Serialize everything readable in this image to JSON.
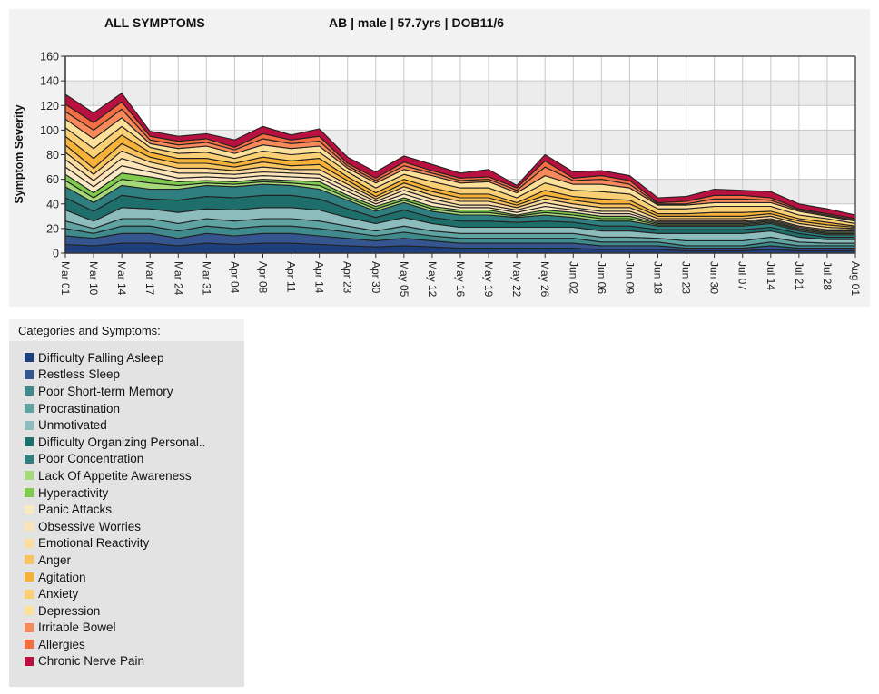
{
  "header": {
    "title": "ALL SYMPTOMS",
    "patient_info": "AB | male | 57.7yrs | DOB11/6"
  },
  "legend": {
    "title": "Categories and Symptoms:"
  },
  "chart_data": {
    "type": "area",
    "stacked": true,
    "title": "ALL SYMPTOMS",
    "subtitle": "AB | male | 57.7yrs | DOB11/6",
    "xlabel": "",
    "ylabel": "Symptom Severity",
    "ylim": [
      0,
      160
    ],
    "yticks": [
      0,
      20,
      40,
      60,
      80,
      100,
      120,
      140,
      160
    ],
    "grid": true,
    "legend_position": "below-left",
    "categories": [
      "Mar 01",
      "Mar 10",
      "Mar 14",
      "Mar 17",
      "Mar 24",
      "Mar 31",
      "Apr 04",
      "Apr 08",
      "Apr 11",
      "Apr 14",
      "Apr 23",
      "Apr 30",
      "May 05",
      "May 12",
      "May 16",
      "May 19",
      "May 22",
      "May 26",
      "Jun 02",
      "Jun 06",
      "Jun 09",
      "Jun 18",
      "Jun 23",
      "Jun 30",
      "Jul 07",
      "Jul 14",
      "Jul 21",
      "Jul 28",
      "Aug 01"
    ],
    "series": [
      {
        "name": "Difficulty Falling Asleep",
        "color": "#1f3f7f",
        "values": [
          7,
          6,
          8,
          8,
          6,
          8,
          7,
          8,
          8,
          7,
          6,
          5,
          6,
          5,
          4,
          4,
          4,
          4,
          4,
          3,
          3,
          3,
          2,
          2,
          2,
          3,
          2,
          2,
          2
        ]
      },
      {
        "name": "Restless Sleep",
        "color": "#34558f",
        "values": [
          7,
          6,
          8,
          8,
          6,
          8,
          7,
          8,
          8,
          7,
          6,
          5,
          6,
          5,
          4,
          4,
          4,
          4,
          4,
          3,
          3,
          3,
          2,
          2,
          2,
          3,
          2,
          2,
          2
        ]
      },
      {
        "name": "Poor Short-term Memory",
        "color": "#3f8a8c",
        "values": [
          6,
          4,
          6,
          6,
          6,
          6,
          6,
          6,
          6,
          6,
          5,
          4,
          5,
          4,
          4,
          4,
          4,
          4,
          4,
          3,
          3,
          3,
          2,
          2,
          2,
          3,
          2,
          2,
          2
        ]
      },
      {
        "name": "Procrastination",
        "color": "#5fa3a3",
        "values": [
          6,
          4,
          6,
          6,
          6,
          6,
          6,
          6,
          6,
          6,
          5,
          4,
          5,
          4,
          4,
          4,
          4,
          4,
          4,
          4,
          4,
          3,
          4,
          4,
          4,
          4,
          3,
          2,
          2
        ]
      },
      {
        "name": "Unmotivated",
        "color": "#8dbcbc",
        "values": [
          9,
          6,
          9,
          8,
          9,
          8,
          9,
          9,
          9,
          9,
          7,
          6,
          7,
          6,
          5,
          5,
          5,
          5,
          5,
          5,
          5,
          4,
          6,
          6,
          6,
          5,
          4,
          3,
          3
        ]
      },
      {
        "name": "Difficulty Organizing Personal..",
        "color": "#1e6e6b",
        "values": [
          10,
          8,
          10,
          8,
          10,
          10,
          10,
          10,
          10,
          9,
          7,
          5,
          6,
          5,
          5,
          5,
          4,
          5,
          4,
          4,
          4,
          3,
          3,
          3,
          3,
          3,
          3,
          2,
          2
        ]
      },
      {
        "name": "Poor Concentration",
        "color": "#2f7f80",
        "values": [
          9,
          7,
          8,
          8,
          9,
          9,
          9,
          9,
          8,
          8,
          7,
          5,
          6,
          5,
          5,
          5,
          4,
          5,
          4,
          4,
          4,
          3,
          3,
          3,
          3,
          3,
          2,
          2,
          2
        ]
      },
      {
        "name": "Lack Of Appetite Awareness",
        "color": "#a6d97a",
        "values": [
          5,
          4,
          5,
          5,
          3,
          2,
          2,
          2,
          2,
          3,
          2,
          2,
          2,
          2,
          2,
          2,
          1,
          2,
          2,
          2,
          2,
          1,
          1,
          1,
          1,
          1,
          1,
          1,
          1
        ]
      },
      {
        "name": "Hyperactivity",
        "color": "#7ecb4e",
        "values": [
          5,
          4,
          5,
          5,
          3,
          2,
          2,
          2,
          2,
          3,
          2,
          2,
          2,
          2,
          2,
          2,
          1,
          2,
          2,
          2,
          2,
          1,
          1,
          1,
          1,
          1,
          1,
          1,
          1
        ]
      },
      {
        "name": "Panic Attacks",
        "color": "#fbe8c4",
        "values": [
          6,
          5,
          6,
          4,
          3,
          3,
          3,
          3,
          3,
          3,
          3,
          2,
          3,
          3,
          2,
          2,
          2,
          3,
          2,
          2,
          2,
          1,
          1,
          1,
          1,
          1,
          1,
          1,
          1
        ]
      },
      {
        "name": "Obsessive Worries",
        "color": "#fde4b8",
        "values": [
          6,
          5,
          6,
          4,
          4,
          3,
          3,
          3,
          3,
          3,
          3,
          2,
          3,
          3,
          2,
          2,
          2,
          3,
          2,
          2,
          2,
          1,
          1,
          1,
          1,
          1,
          1,
          1,
          1
        ]
      },
      {
        "name": "Emotional Reactivity",
        "color": "#fddc9f",
        "values": [
          6,
          5,
          6,
          4,
          4,
          4,
          3,
          4,
          3,
          4,
          3,
          2,
          3,
          3,
          3,
          3,
          2,
          3,
          3,
          3,
          3,
          2,
          2,
          2,
          2,
          2,
          2,
          2,
          1
        ]
      },
      {
        "name": "Anger",
        "color": "#f9c35e",
        "values": [
          6,
          5,
          6,
          4,
          4,
          4,
          3,
          4,
          3,
          4,
          3,
          2,
          3,
          3,
          3,
          3,
          2,
          3,
          3,
          3,
          3,
          2,
          2,
          2,
          2,
          2,
          2,
          2,
          1
        ]
      },
      {
        "name": "Agitation",
        "color": "#f7b237",
        "values": [
          7,
          8,
          7,
          4,
          4,
          4,
          3,
          4,
          4,
          5,
          3,
          3,
          3,
          3,
          3,
          3,
          2,
          4,
          3,
          4,
          3,
          2,
          2,
          3,
          3,
          2,
          2,
          2,
          1
        ]
      },
      {
        "name": "Anxiety",
        "color": "#fbd075",
        "values": [
          7,
          8,
          7,
          4,
          4,
          5,
          4,
          5,
          5,
          5,
          4,
          4,
          4,
          5,
          5,
          5,
          4,
          6,
          5,
          6,
          5,
          4,
          4,
          5,
          5,
          4,
          3,
          3,
          2
        ]
      },
      {
        "name": "Depression",
        "color": "#fde09a",
        "values": [
          7,
          8,
          7,
          3,
          4,
          5,
          4,
          5,
          5,
          5,
          3,
          4,
          4,
          5,
          4,
          5,
          4,
          6,
          5,
          6,
          5,
          3,
          3,
          3,
          3,
          3,
          3,
          2,
          2
        ]
      },
      {
        "name": "Irritable Bowel",
        "color": "#f7895a",
        "values": [
          6,
          7,
          7,
          3,
          3,
          3,
          3,
          5,
          4,
          4,
          2,
          2,
          3,
          2,
          2,
          2,
          2,
          7,
          3,
          4,
          3,
          1,
          1,
          3,
          3,
          2,
          1,
          1,
          1
        ]
      },
      {
        "name": "Allergies",
        "color": "#f46d43",
        "values": [
          6,
          6,
          6,
          3,
          3,
          3,
          2,
          4,
          3,
          4,
          2,
          2,
          3,
          2,
          2,
          2,
          2,
          5,
          2,
          3,
          3,
          1,
          2,
          3,
          3,
          2,
          1,
          1,
          1
        ]
      },
      {
        "name": "Chronic Nerve Pain",
        "color": "#b8103f",
        "values": [
          8,
          8,
          7,
          4,
          4,
          4,
          6,
          6,
          4,
          6,
          5,
          5,
          5,
          5,
          4,
          6,
          2,
          5,
          5,
          4,
          4,
          4,
          4,
          5,
          4,
          5,
          4,
          4,
          3
        ]
      }
    ]
  }
}
